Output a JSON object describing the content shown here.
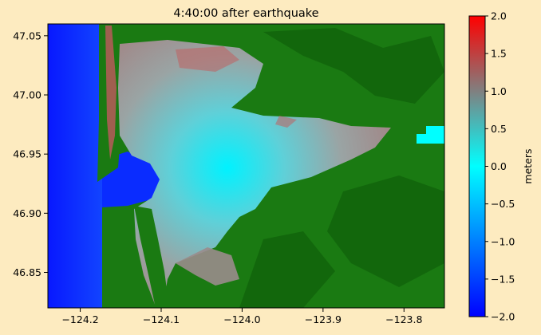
{
  "chart_data": {
    "type": "heatmap",
    "title": "4:40:00 after earthquake",
    "xlabel": "",
    "ylabel": "",
    "x_ticks": [
      "−124.2",
      "−124.1",
      "−124.0",
      "−123.9",
      "−123.8"
    ],
    "x_tick_values": [
      -124.2,
      -124.1,
      -124.0,
      -123.9,
      -123.8
    ],
    "y_ticks": [
      "47.05",
      "47.00",
      "46.95",
      "46.90",
      "46.85"
    ],
    "y_tick_values": [
      47.05,
      47.0,
      46.95,
      46.9,
      46.85
    ],
    "xlim": [
      -124.24,
      -123.75
    ],
    "ylim": [
      46.82,
      47.06
    ],
    "colorbar": {
      "label": "meters",
      "ticks": [
        "2.0",
        "1.5",
        "1.0",
        "0.5",
        "0.0",
        "−0.5",
        "−1.0",
        "−1.5",
        "−2.0"
      ],
      "tick_values": [
        2.0,
        1.5,
        1.0,
        0.5,
        0.0,
        -0.5,
        -1.0,
        -1.5,
        -2.0
      ],
      "range": [
        -2.0,
        2.0
      ],
      "colors": [
        "#0000ff",
        "#00ffff",
        "#808080",
        "#ff0000"
      ]
    },
    "colors": {
      "land": "#1a7a12",
      "land_dark": "#0f5f0a",
      "ocean": "#0a2cff",
      "figure_bg": "#fdebc0"
    }
  }
}
